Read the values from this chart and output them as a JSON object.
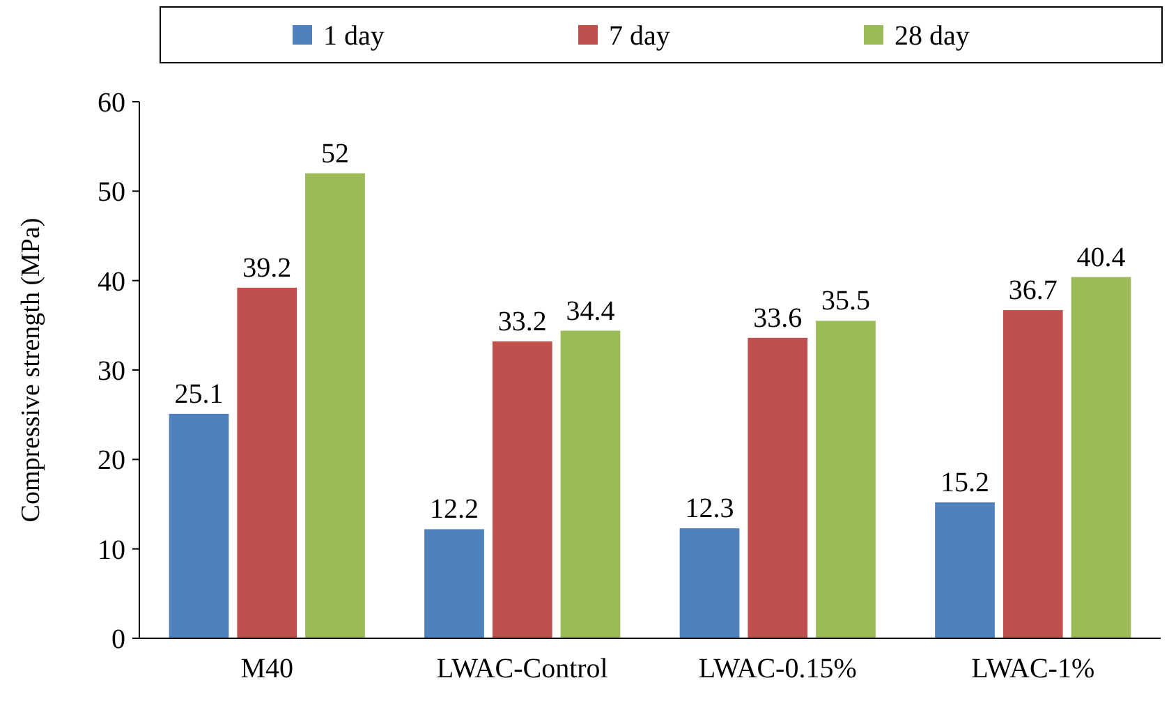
{
  "chart_data": {
    "type": "bar",
    "ylabel": "Compressive strength (MPa)",
    "categories": [
      "M40",
      "LWAC-Control",
      "LWAC-0.15%",
      "LWAC-1%"
    ],
    "series": [
      {
        "name": "1 day",
        "color": "#4f81bd",
        "values": [
          25.1,
          12.2,
          12.3,
          15.2
        ]
      },
      {
        "name": "7 day",
        "color": "#c0504d",
        "values": [
          39.2,
          33.2,
          33.6,
          36.7
        ]
      },
      {
        "name": "28 day",
        "color": "#9bbb59",
        "values": [
          52,
          34.4,
          35.5,
          40.4
        ]
      }
    ],
    "ylim": [
      0,
      60
    ],
    "yticks": [
      0,
      10,
      20,
      30,
      40,
      50,
      60
    ],
    "data_labels": true,
    "legend": "top",
    "grid": false
  }
}
